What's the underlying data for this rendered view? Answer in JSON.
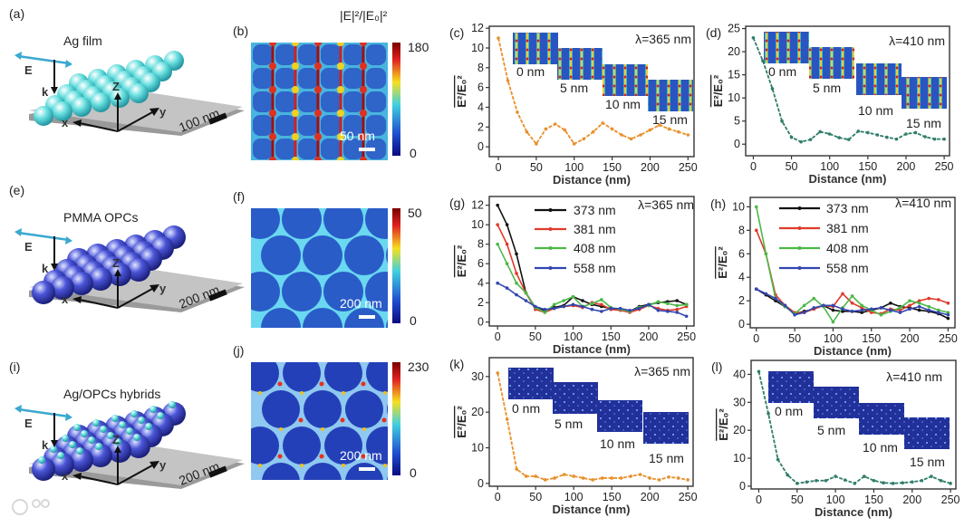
{
  "panels": {
    "a": {
      "label": "(a)",
      "title": "Ag film",
      "e": "E",
      "k": "k",
      "x": "x",
      "y": "y",
      "z": "Z",
      "scale": "100 nm"
    },
    "e": {
      "label": "(e)",
      "title": "PMMA OPCs",
      "e": "E",
      "k": "k",
      "x": "x",
      "y": "y",
      "z": "Z",
      "scale": "200 nm"
    },
    "i": {
      "label": "(i)",
      "title": "Ag/OPCs hybrids",
      "e": "E",
      "k": "k",
      "x": "x",
      "y": "y",
      "z": "Z",
      "scale": "200 nm"
    },
    "b": {
      "label": "(b)",
      "colorbar_title": "|E|²/|E₀|²",
      "max": "180",
      "min": "0",
      "scale": "50 nm"
    },
    "f": {
      "label": "(f)",
      "max": "50",
      "min": "0",
      "scale": "200 nm"
    },
    "j": {
      "label": "(j)",
      "max": "230",
      "min": "0",
      "scale": "200 nm"
    }
  },
  "watermark": "大数跨境",
  "colors": {
    "orange": "#e8902a",
    "teal": "#2e7d6a",
    "black": "#111111",
    "red": "#e03a2a",
    "green": "#4cb848",
    "blue": "#3246b0"
  },
  "chart_data": [
    {
      "id": "c",
      "panel": "(c)",
      "type": "line",
      "title": "λ=365 nm",
      "xlabel": "Distance (nm)",
      "ylabel": "E²/E₀²",
      "xlim": [
        -12,
        258
      ],
      "ylim": [
        -1,
        12.2
      ],
      "xticks": [
        "0",
        "50",
        "100",
        "150",
        "200",
        "250"
      ],
      "xtick_values": [
        0,
        50,
        100,
        150,
        200,
        250
      ],
      "yticks": [
        "0",
        "2",
        "4",
        "6",
        "8",
        "10",
        "12"
      ],
      "ytick_values": [
        0,
        2,
        4,
        6,
        8,
        10,
        12
      ],
      "insets": [
        "0 nm",
        "5 nm",
        "10 nm",
        "15 nm"
      ],
      "x": [
        0,
        12.5,
        25,
        37.5,
        50,
        62.5,
        75,
        87.5,
        100,
        112.5,
        125,
        137.5,
        150,
        162.5,
        175,
        187.5,
        200,
        212.5,
        225,
        237.5,
        250
      ],
      "series": [
        {
          "name": "",
          "color": "#e8902a",
          "values": [
            11,
            6.7,
            3.5,
            1.5,
            0.3,
            1.8,
            2.3,
            1.7,
            0.3,
            0.8,
            1.5,
            2.4,
            1.8,
            1.2,
            0.8,
            1.2,
            1.7,
            2.2,
            1.8,
            1.5,
            1.2
          ]
        }
      ]
    },
    {
      "id": "d",
      "panel": "(d)",
      "type": "line",
      "title": "λ=410 nm",
      "xlabel": "Distance (nm)",
      "ylabel": "E²/E₀²",
      "xlim": [
        -10,
        257
      ],
      "ylim": [
        -2.5,
        25.5
      ],
      "xticks": [
        "0",
        "50",
        "100",
        "150",
        "200",
        "250"
      ],
      "xtick_values": [
        0,
        50,
        100,
        150,
        200,
        250
      ],
      "yticks": [
        "0",
        "5",
        "10",
        "15",
        "20",
        "25"
      ],
      "ytick_values": [
        0,
        5,
        10,
        15,
        20,
        25
      ],
      "insets": [
        "0 nm",
        "5 nm",
        "10 nm",
        "15 nm"
      ],
      "x": [
        0,
        12.5,
        25,
        37.5,
        50,
        62.5,
        75,
        87.5,
        100,
        112.5,
        125,
        137.5,
        150,
        162.5,
        175,
        187.5,
        200,
        212.5,
        225,
        237.5,
        250
      ],
      "series": [
        {
          "name": "",
          "color": "#2e7d6a",
          "values": [
            23,
            18,
            12,
            5,
            1.5,
            0.5,
            1,
            2.7,
            2.2,
            1.4,
            1,
            2.8,
            2.5,
            2,
            1.5,
            1.1,
            2.2,
            2.5,
            1.6,
            1.1,
            1.1
          ]
        }
      ]
    },
    {
      "id": "g",
      "panel": "(g)",
      "type": "line",
      "title": "λ=365 nm",
      "xlabel": "Distance (nm)",
      "ylabel": "E²/E₀²",
      "xlim": [
        -11,
        260
      ],
      "ylim": [
        -0.4,
        12.9
      ],
      "xticks": [
        "0",
        "50",
        "100",
        "150",
        "200",
        "250"
      ],
      "xtick_values": [
        0,
        50,
        100,
        150,
        200,
        250
      ],
      "yticks": [
        "0",
        "2",
        "4",
        "6",
        "8",
        "10",
        "12"
      ],
      "ytick_values": [
        0,
        2,
        4,
        6,
        8,
        10,
        12
      ],
      "legend": "top-center",
      "x": [
        0,
        12.5,
        25,
        37.5,
        50,
        62.5,
        75,
        87.5,
        100,
        112.5,
        125,
        137.5,
        150,
        162.5,
        175,
        187.5,
        200,
        212.5,
        225,
        237.5,
        250
      ],
      "series": [
        {
          "name": "373 nm",
          "color": "#111111",
          "values": [
            12,
            10,
            7,
            3,
            1.5,
            1.2,
            1.5,
            1.7,
            2.6,
            2.2,
            1.8,
            1.6,
            1.4,
            1.3,
            1.1,
            1.6,
            1.8,
            2,
            2.1,
            2.2,
            1.8
          ]
        },
        {
          "name": "381 nm",
          "color": "#e03a2a",
          "values": [
            10,
            8,
            5,
            3,
            1.3,
            1.0,
            1.4,
            1.6,
            1.7,
            1.5,
            2.0,
            1.8,
            1.3,
            1.2,
            1.0,
            1.3,
            1.7,
            1.4,
            1.2,
            1.3,
            1.6
          ]
        },
        {
          "name": "408 nm",
          "color": "#4cb848",
          "values": [
            8,
            6,
            4,
            3,
            1.5,
            1.0,
            1.8,
            2.2,
            2.6,
            1.6,
            1.9,
            2.3,
            1.5,
            1.3,
            1.1,
            1.5,
            1.7,
            2.1,
            1.9,
            1.7,
            1.8
          ]
        },
        {
          "name": "558 nm",
          "color": "#3246b0",
          "values": [
            4,
            3.5,
            2.8,
            2.2,
            1.6,
            1.3,
            1.4,
            1.6,
            1.8,
            1.6,
            1.3,
            1.1,
            1.4,
            1.4,
            1.2,
            1.4,
            1.8,
            1.2,
            1.1,
            1.0,
            0.6
          ]
        }
      ]
    },
    {
      "id": "h",
      "panel": "(h)",
      "type": "line",
      "title": "λ=410 nm",
      "xlabel": "Distance (nm)",
      "ylabel": "E²/E₀²",
      "xlim": [
        -8,
        259
      ],
      "ylim": [
        -0.3,
        10.8
      ],
      "xticks": [
        "0",
        "50",
        "100",
        "150",
        "200",
        "250"
      ],
      "xtick_values": [
        0,
        50,
        100,
        150,
        200,
        250
      ],
      "yticks": [
        "0",
        "2",
        "4",
        "6",
        "8",
        "10"
      ],
      "ytick_values": [
        0,
        2,
        4,
        6,
        8,
        10
      ],
      "legend": "top-center",
      "x": [
        0,
        12.5,
        25,
        37.5,
        50,
        62.5,
        75,
        87.5,
        100,
        112.5,
        125,
        137.5,
        150,
        162.5,
        175,
        187.5,
        200,
        212.5,
        225,
        237.5,
        250
      ],
      "series": [
        {
          "name": "373 nm",
          "color": "#111111",
          "values": [
            3,
            2.5,
            2.0,
            1.5,
            0.9,
            1.1,
            1.3,
            1.6,
            1.2,
            1.1,
            1.1,
            1.0,
            1.2,
            1.4,
            1.8,
            1.5,
            1.4,
            1.2,
            1.1,
            0.9,
            0.5
          ]
        },
        {
          "name": "381 nm",
          "color": "#e03a2a",
          "values": [
            8,
            6,
            2.5,
            1.6,
            1.0,
            1.0,
            1.3,
            1.6,
            1.5,
            2.6,
            1.8,
            1.4,
            1.0,
            0.9,
            1.3,
            1.2,
            1.6,
            2.0,
            2.2,
            2.1,
            1.8
          ]
        },
        {
          "name": "408 nm",
          "color": "#4cb848",
          "values": [
            10,
            6,
            2.2,
            1.5,
            0.9,
            1.6,
            2.2,
            1.5,
            0.2,
            1.4,
            2.4,
            1.6,
            1.2,
            0.8,
            1.1,
            1.4,
            2.0,
            1.8,
            1.5,
            1.2,
            1.0
          ]
        },
        {
          "name": "558 nm",
          "color": "#3246b0",
          "values": [
            3,
            2.6,
            2.2,
            1.6,
            0.8,
            1.0,
            1.4,
            1.6,
            1.6,
            1.3,
            1.1,
            1.2,
            1.3,
            1.4,
            1.2,
            1.0,
            1.3,
            1.5,
            1.2,
            1.0,
            0.8
          ]
        }
      ]
    },
    {
      "id": "k",
      "panel": "(k)",
      "type": "line",
      "title": "λ=365 nm",
      "xlabel": "Distance (nm)",
      "ylabel": "E²/E₀²",
      "xlim": [
        -11,
        257
      ],
      "ylim": [
        -0.8,
        35.3
      ],
      "xticks": [
        "0",
        "50",
        "100",
        "150",
        "200",
        "250"
      ],
      "xtick_values": [
        0,
        50,
        100,
        150,
        200,
        250
      ],
      "yticks": [
        "0",
        "10",
        "20",
        "30"
      ],
      "ytick_values": [
        0,
        10,
        20,
        30
      ],
      "insets": [
        "0 nm",
        "5 nm",
        "10 nm",
        "15 nm"
      ],
      "x": [
        0,
        12.5,
        25,
        37.5,
        50,
        62.5,
        75,
        87.5,
        100,
        112.5,
        125,
        137.5,
        150,
        162.5,
        175,
        187.5,
        200,
        212.5,
        225,
        237.5,
        250
      ],
      "series": [
        {
          "name": "",
          "color": "#e8902a",
          "values": [
            31,
            18,
            4,
            2,
            2,
            1,
            1.5,
            2.5,
            2,
            1.5,
            1,
            1.5,
            1.5,
            1.5,
            2,
            2.5,
            1.5,
            1,
            1.8,
            1.5,
            1
          ]
        }
      ]
    },
    {
      "id": "l",
      "panel": "(l)",
      "type": "line",
      "title": "λ=410 nm",
      "xlabel": "Distance (nm)",
      "ylabel": "E²/E₀²",
      "xlim": [
        -10,
        257
      ],
      "ylim": [
        -1,
        45
      ],
      "xticks": [
        "0",
        "50",
        "100",
        "150",
        "200",
        "250"
      ],
      "xtick_values": [
        0,
        50,
        100,
        150,
        200,
        250
      ],
      "yticks": [
        "0",
        "10",
        "20",
        "30",
        "40"
      ],
      "ytick_values": [
        0,
        10,
        20,
        30,
        40
      ],
      "insets": [
        "0 nm",
        "5 nm",
        "10 nm",
        "15 nm"
      ],
      "x": [
        0,
        12.5,
        25,
        37.5,
        50,
        62.5,
        75,
        87.5,
        100,
        112.5,
        125,
        137.5,
        150,
        162.5,
        175,
        187.5,
        200,
        212.5,
        225,
        237.5,
        250
      ],
      "series": [
        {
          "name": "",
          "color": "#2e7d6a",
          "values": [
            41,
            26,
            9.5,
            4,
            1,
            1.5,
            2,
            2,
            3.5,
            2.2,
            1,
            3.5,
            2,
            1.2,
            1,
            1.2,
            1.5,
            2,
            3.5,
            2,
            1
          ]
        }
      ]
    }
  ]
}
